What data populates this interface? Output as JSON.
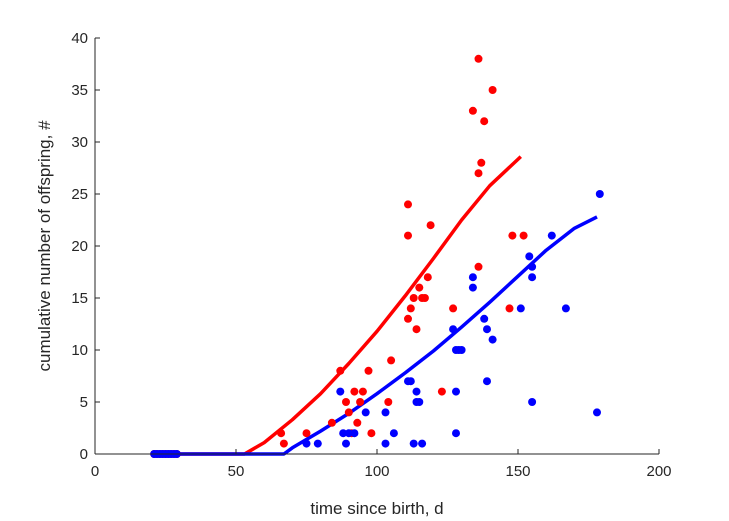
{
  "chart_data": {
    "type": "scatter",
    "title": "",
    "xlabel": "time since birth, d",
    "ylabel": "cumulative number of offspring, #",
    "xlim": [
      0,
      200
    ],
    "ylim": [
      0,
      40
    ],
    "xticks": [
      0,
      50,
      100,
      150,
      200
    ],
    "yticks": [
      0,
      5,
      10,
      15,
      20,
      25,
      30,
      35,
      40
    ],
    "grid": false,
    "box": false,
    "series": [
      {
        "color": "#ff0000",
        "points": [
          [
            21,
            0
          ],
          [
            22,
            0
          ],
          [
            23,
            0
          ],
          [
            24,
            0
          ],
          [
            25,
            0
          ],
          [
            26,
            0
          ],
          [
            27,
            0
          ],
          [
            28,
            0
          ],
          [
            29,
            0
          ],
          [
            66,
            2
          ],
          [
            67,
            1
          ],
          [
            75,
            2
          ],
          [
            84,
            3
          ],
          [
            87,
            8
          ],
          [
            89,
            5
          ],
          [
            90,
            4
          ],
          [
            91,
            2
          ],
          [
            92,
            6
          ],
          [
            93,
            3
          ],
          [
            94,
            5
          ],
          [
            95,
            6
          ],
          [
            97,
            8
          ],
          [
            98,
            2
          ],
          [
            104,
            5
          ],
          [
            105,
            9
          ],
          [
            111,
            13
          ],
          [
            111,
            21
          ],
          [
            111,
            24
          ],
          [
            112,
            14
          ],
          [
            113,
            15
          ],
          [
            114,
            12
          ],
          [
            115,
            16
          ],
          [
            116,
            15
          ],
          [
            117,
            15
          ],
          [
            118,
            17
          ],
          [
            119,
            22
          ],
          [
            123,
            6
          ],
          [
            127,
            14
          ],
          [
            134,
            33
          ],
          [
            136,
            38
          ],
          [
            136,
            27
          ],
          [
            136,
            18
          ],
          [
            137,
            28
          ],
          [
            138,
            32
          ],
          [
            141,
            35
          ],
          [
            147,
            14
          ],
          [
            148,
            21
          ],
          [
            152,
            21
          ]
        ],
        "fit": [
          [
            20,
            0
          ],
          [
            30,
            0
          ],
          [
            40,
            0
          ],
          [
            50,
            0
          ],
          [
            53,
            0
          ],
          [
            60,
            1.1
          ],
          [
            70,
            3.3
          ],
          [
            80,
            5.8
          ],
          [
            90,
            8.7
          ],
          [
            100,
            11.8
          ],
          [
            110,
            15.2
          ],
          [
            120,
            18.8
          ],
          [
            130,
            22.5
          ],
          [
            140,
            25.8
          ],
          [
            151,
            28.6
          ]
        ]
      },
      {
        "color": "#0000ff",
        "points": [
          [
            21,
            0
          ],
          [
            22,
            0
          ],
          [
            23,
            0
          ],
          [
            24,
            0
          ],
          [
            25,
            0
          ],
          [
            26,
            0
          ],
          [
            27,
            0
          ],
          [
            28,
            0
          ],
          [
            29,
            0
          ],
          [
            75,
            1
          ],
          [
            79,
            1
          ],
          [
            87,
            6
          ],
          [
            88,
            2
          ],
          [
            89,
            1
          ],
          [
            90,
            2
          ],
          [
            92,
            2
          ],
          [
            96,
            4
          ],
          [
            103,
            4
          ],
          [
            103,
            1
          ],
          [
            106,
            2
          ],
          [
            111,
            7
          ],
          [
            112,
            7
          ],
          [
            113,
            1
          ],
          [
            114,
            6
          ],
          [
            114,
            5
          ],
          [
            115,
            5
          ],
          [
            116,
            1
          ],
          [
            127,
            12
          ],
          [
            128,
            6
          ],
          [
            128,
            2
          ],
          [
            128,
            10
          ],
          [
            129,
            10
          ],
          [
            130,
            10
          ],
          [
            134,
            17
          ],
          [
            134,
            16
          ],
          [
            138,
            13
          ],
          [
            139,
            12
          ],
          [
            139,
            7
          ],
          [
            141,
            11
          ],
          [
            151,
            14
          ],
          [
            154,
            19
          ],
          [
            155,
            18
          ],
          [
            155,
            17
          ],
          [
            155,
            5
          ],
          [
            162,
            21
          ],
          [
            167,
            14
          ],
          [
            178,
            4
          ],
          [
            179,
            25
          ]
        ],
        "fit": [
          [
            20,
            0
          ],
          [
            40,
            0
          ],
          [
            60,
            0
          ],
          [
            67,
            0
          ],
          [
            70,
            0.6
          ],
          [
            80,
            2.2
          ],
          [
            90,
            3.9
          ],
          [
            100,
            5.8
          ],
          [
            110,
            7.8
          ],
          [
            120,
            9.9
          ],
          [
            130,
            12.2
          ],
          [
            140,
            14.6
          ],
          [
            150,
            17.1
          ],
          [
            160,
            19.6
          ],
          [
            170,
            21.7
          ],
          [
            178,
            22.8
          ]
        ]
      }
    ]
  }
}
